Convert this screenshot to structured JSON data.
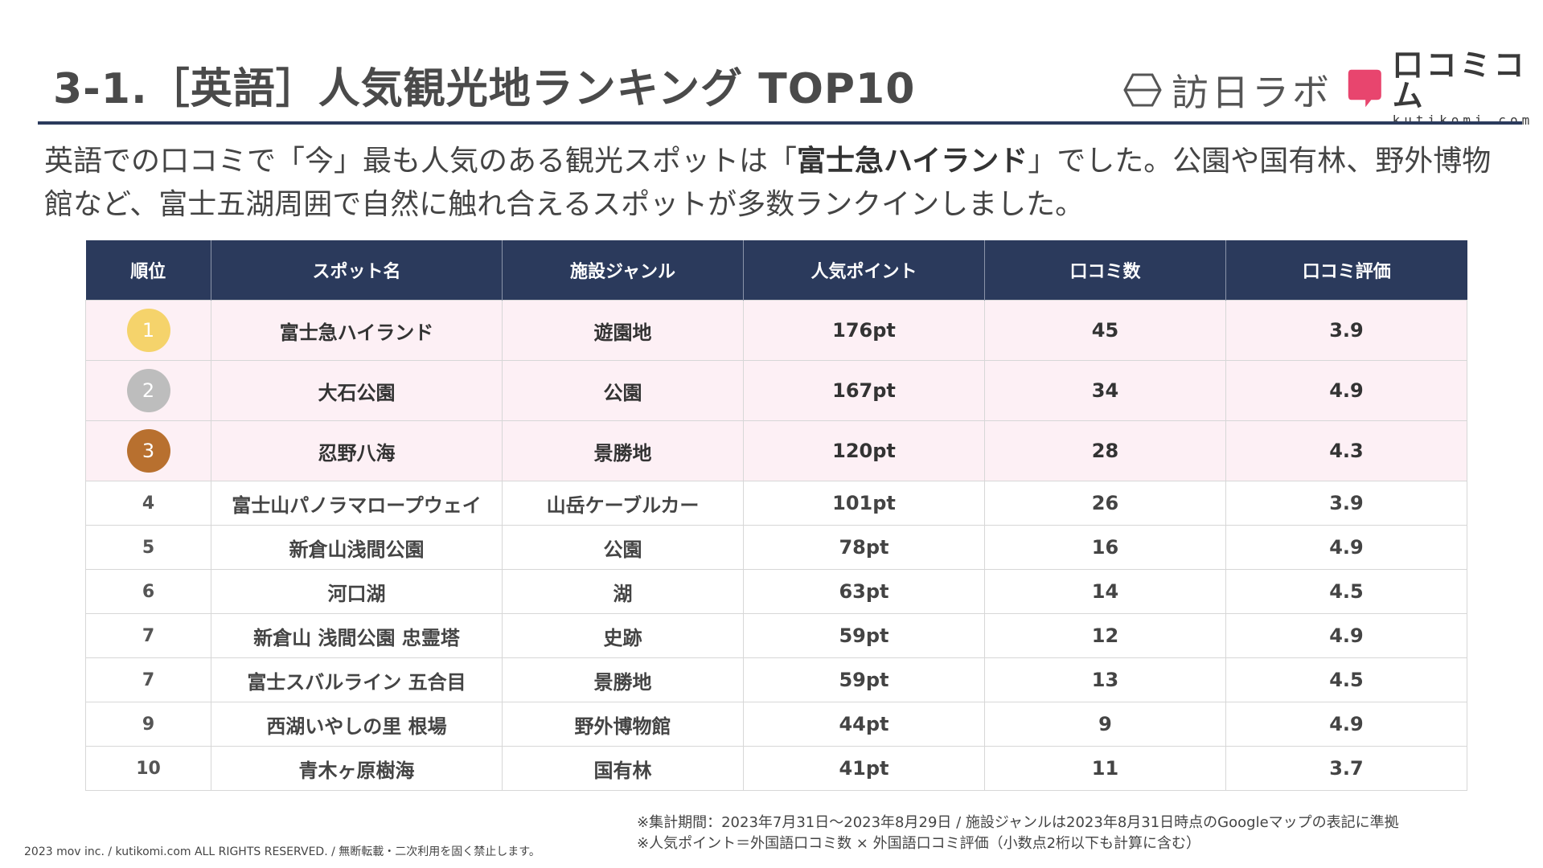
{
  "header": {
    "title": "3-1.［英語］人気観光地ランキング TOP10",
    "logo_houjin": "訪日ラボ",
    "logo_kuchikomi_main": "口コミコム",
    "logo_kuchikomi_sub": "kutikomi com"
  },
  "lead": {
    "before": "英語での口コミで「今」最も人気のある観光スポットは「",
    "highlight": "富士急ハイランド",
    "after": "」でした。公園や国有林、野外博物館など、富士五湖周囲で自然に触れ合えるスポットが多数ランクインしました。"
  },
  "table": {
    "headers": [
      "順位",
      "スポット名",
      "施設ジャンル",
      "人気ポイント",
      "口コミ数",
      "口コミ評価"
    ],
    "rows": [
      {
        "rank": "1",
        "name": "富士急ハイランド",
        "genre": "遊園地",
        "points": "176pt",
        "count": "45",
        "rating": "3.9"
      },
      {
        "rank": "2",
        "name": "大石公園",
        "genre": "公園",
        "points": "167pt",
        "count": "34",
        "rating": "4.9"
      },
      {
        "rank": "3",
        "name": "忍野八海",
        "genre": "景勝地",
        "points": "120pt",
        "count": "28",
        "rating": "4.3"
      },
      {
        "rank": "4",
        "name": "富士山パノラマロープウェイ",
        "genre": "山岳ケーブルカー",
        "points": "101pt",
        "count": "26",
        "rating": "3.9"
      },
      {
        "rank": "5",
        "name": "新倉山浅間公園",
        "genre": "公園",
        "points": "78pt",
        "count": "16",
        "rating": "4.9"
      },
      {
        "rank": "6",
        "name": "河口湖",
        "genre": "湖",
        "points": "63pt",
        "count": "14",
        "rating": "4.5"
      },
      {
        "rank": "7",
        "name": "新倉山 浅間公園 忠霊塔",
        "genre": "史跡",
        "points": "59pt",
        "count": "12",
        "rating": "4.9"
      },
      {
        "rank": "7",
        "name": "富士スバルライン 五合目",
        "genre": "景勝地",
        "points": "59pt",
        "count": "13",
        "rating": "4.5"
      },
      {
        "rank": "9",
        "name": "西湖いやしの里 根場",
        "genre": "野外博物館",
        "points": "44pt",
        "count": "9",
        "rating": "4.9"
      },
      {
        "rank": "10",
        "name": "青木ヶ原樹海",
        "genre": "国有林",
        "points": "41pt",
        "count": "11",
        "rating": "3.7"
      }
    ]
  },
  "medal_colors": {
    "gold": "#f5d36b",
    "silver": "#bdbdbd",
    "bronze": "#b8702f"
  },
  "colors": {
    "header_navy": "#2b3a5c",
    "top3_row_bg": "#fdf0f5",
    "kuchikomi_pink": "#e8456e"
  },
  "footnotes": {
    "line1": "※集計期間：2023年7月31日～2023年8月29日 / 施設ジャンルは2023年8月31日時点のGoogleマップの表記に準拠",
    "line2": "※人気ポイント＝外国語口コミ数 × 外国語口コミ評価（小数点2桁以下も計算に含む）"
  },
  "copyright": "2023 mov inc. / kutikomi.com ALL RIGHTS RESERVED. / 無断転載・二次利用を固く禁止します。"
}
